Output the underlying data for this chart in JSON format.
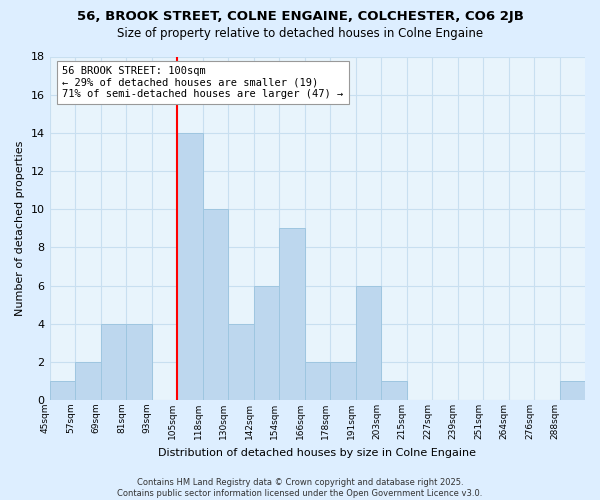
{
  "title_line1": "56, BROOK STREET, COLNE ENGAINE, COLCHESTER, CO6 2JB",
  "title_line2": "Size of property relative to detached houses in Colne Engaine",
  "xlabel": "Distribution of detached houses by size in Colne Engaine",
  "ylabel": "Number of detached properties",
  "bin_labels": [
    "45sqm",
    "57sqm",
    "69sqm",
    "81sqm",
    "93sqm",
    "105sqm",
    "118sqm",
    "130sqm",
    "142sqm",
    "154sqm",
    "166sqm",
    "178sqm",
    "191sqm",
    "203sqm",
    "215sqm",
    "227sqm",
    "239sqm",
    "251sqm",
    "264sqm",
    "276sqm",
    "288sqm"
  ],
  "counts": [
    1,
    2,
    4,
    4,
    0,
    14,
    10,
    4,
    6,
    9,
    2,
    2,
    6,
    1,
    0,
    0,
    0,
    0,
    0,
    0,
    1
  ],
  "bar_color": "#bdd7ee",
  "bar_edge_color": "#9ec6e0",
  "vline_bin": 5,
  "vline_color": "red",
  "annotation_text_line1": "56 BROOK STREET: 100sqm",
  "annotation_text_line2": "← 29% of detached houses are smaller (19)",
  "annotation_text_line3": "71% of semi-detached houses are larger (47) →",
  "ylim": [
    0,
    18
  ],
  "yticks": [
    0,
    2,
    4,
    6,
    8,
    10,
    12,
    14,
    16,
    18
  ],
  "bg_color": "#ddeeff",
  "plot_bg_color": "#e8f4fc",
  "grid_color": "#c8dff0",
  "footnote_line1": "Contains HM Land Registry data © Crown copyright and database right 2025.",
  "footnote_line2": "Contains public sector information licensed under the Open Government Licence v3.0.",
  "title_fontsize": 9.5,
  "subtitle_fontsize": 8.5,
  "ylabel_text": "Number of detached properties",
  "annotation_box_color": "white",
  "annotation_box_edge": "#999999"
}
